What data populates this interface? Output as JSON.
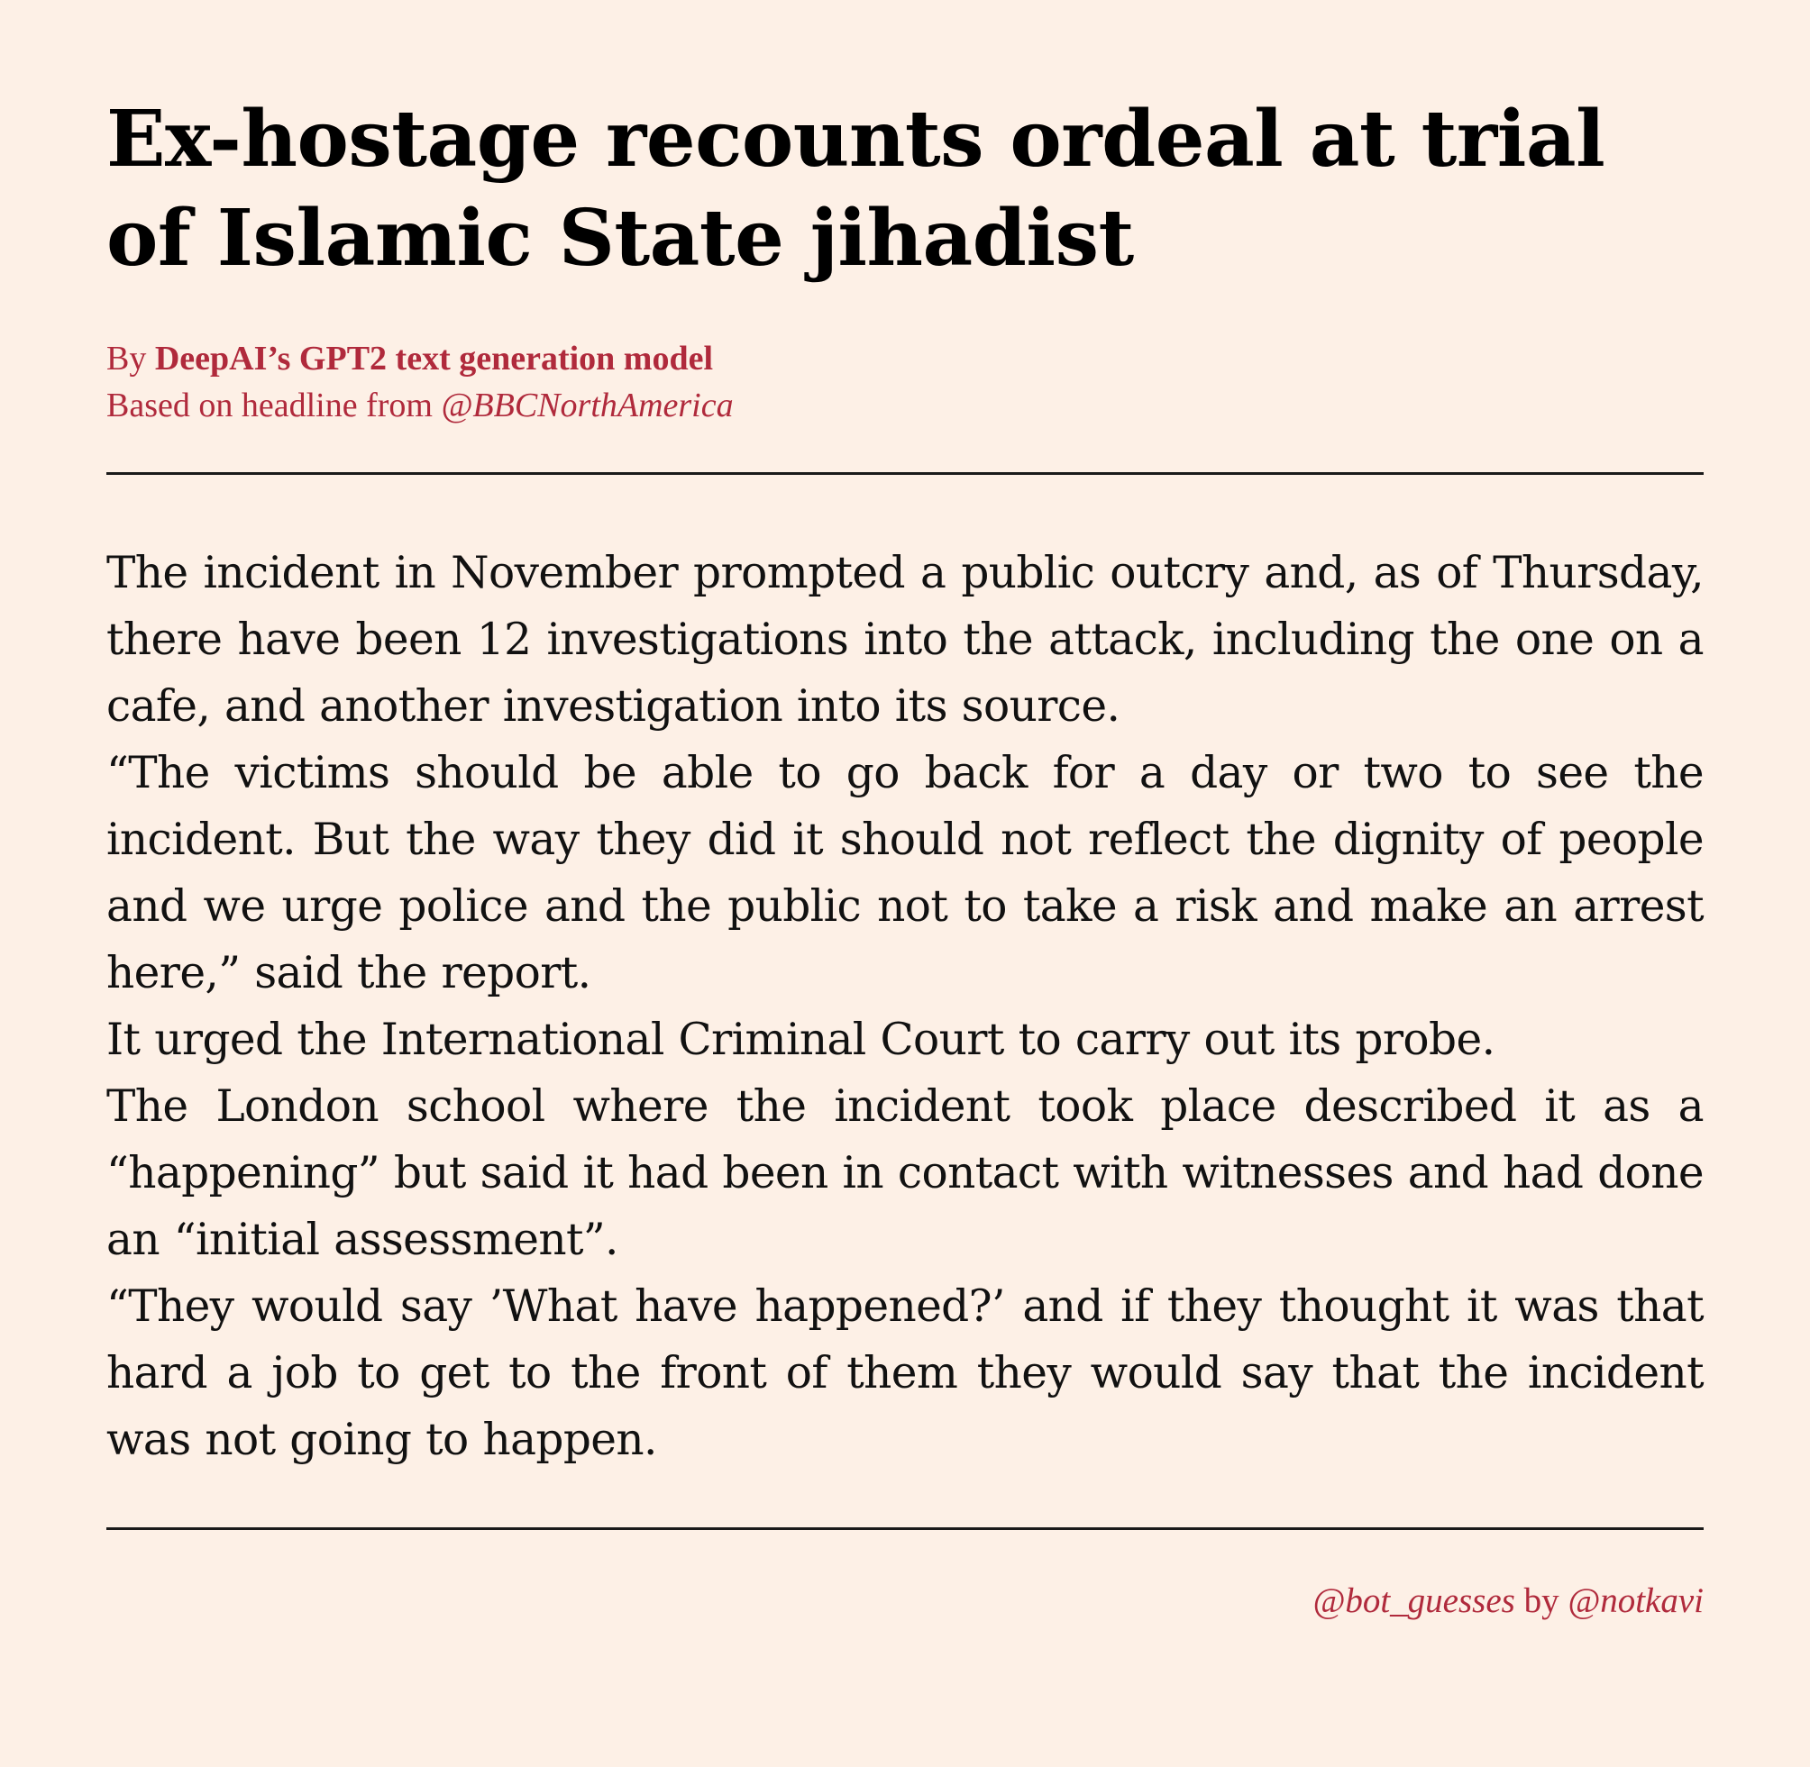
{
  "article": {
    "headline": "Ex-hostage recounts ordeal at trial of Islamic State jihadist",
    "byline": {
      "by": "By ",
      "author": "DeepAI’s GPT2 text generation model",
      "based_on": "Based on headline from ",
      "source_handle": "@BBCNorthAmerica"
    },
    "paragraphs": [
      "The incident in November prompted a public outcry and, as of Thursday, there have been 12 investigations into the attack, including the one on a cafe, and another investigation into its source.",
      "“The victims should be able to go back for a day or two to see the incident.  But the way they did it should not reflect the dignity of people and we urge police and the public not to take a risk and make an arrest here,” said the report.",
      "It urged the International Criminal Court to carry out its probe.",
      "The London school where the incident took place described it as a “happening” but said it had been in contact with witnesses and had done an “initial assessment”.",
      "“They would say ’What have happened?’ and if they thought it was that hard a job to get to the front of them they would say that the incident was not going to happen."
    ]
  },
  "footer": {
    "bot_handle": "@bot_guesses",
    "by": " by ",
    "creator_handle": "@notkavi"
  },
  "colors": {
    "background": "#fdf0e6",
    "accent": "#b02a3c",
    "text": "#111111"
  }
}
